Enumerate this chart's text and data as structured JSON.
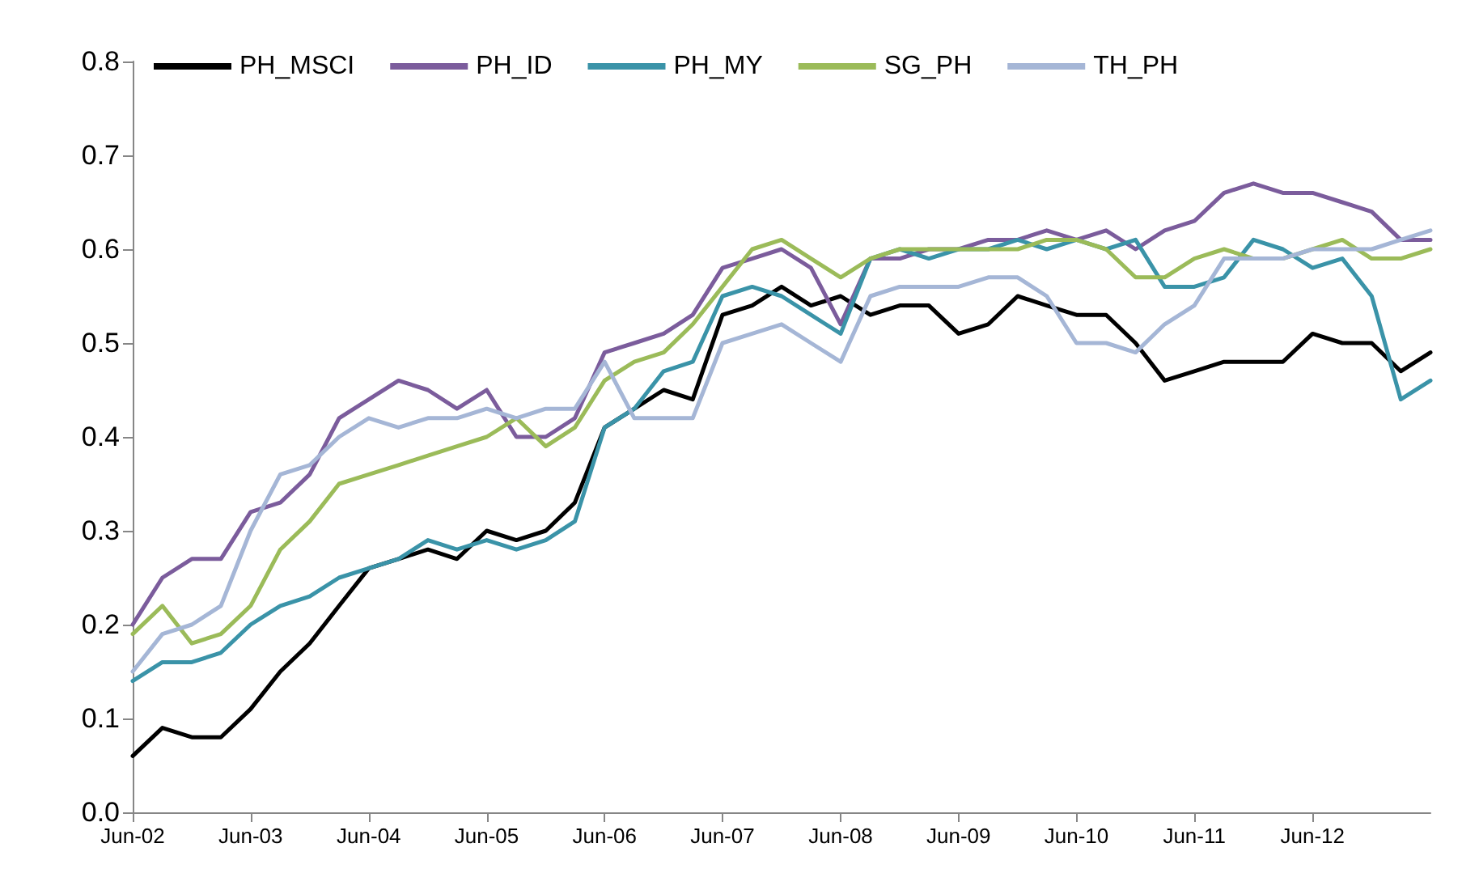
{
  "chart_data": {
    "type": "line",
    "x": [
      "2002-06",
      "2002-09",
      "2002-12",
      "2003-03",
      "2003-06",
      "2003-09",
      "2003-12",
      "2004-03",
      "2004-06",
      "2004-09",
      "2004-12",
      "2005-03",
      "2005-06",
      "2005-09",
      "2005-12",
      "2006-03",
      "2006-06",
      "2006-09",
      "2006-12",
      "2007-03",
      "2007-06",
      "2007-09",
      "2007-12",
      "2008-03",
      "2008-06",
      "2008-09",
      "2008-12",
      "2009-03",
      "2009-06",
      "2009-09",
      "2009-12",
      "2010-03",
      "2010-06",
      "2010-09",
      "2010-12",
      "2011-03",
      "2011-06",
      "2011-09",
      "2011-12",
      "2012-03",
      "2012-06",
      "2012-09",
      "2012-12",
      "2013-03",
      "2013-06"
    ],
    "series": [
      {
        "name": "PH_MSCI",
        "color": "#000000",
        "values": [
          0.06,
          0.09,
          0.08,
          0.08,
          0.11,
          0.15,
          0.18,
          0.22,
          0.26,
          0.27,
          0.28,
          0.27,
          0.3,
          0.29,
          0.3,
          0.33,
          0.41,
          0.43,
          0.45,
          0.44,
          0.53,
          0.54,
          0.56,
          0.54,
          0.55,
          0.53,
          0.54,
          0.54,
          0.51,
          0.52,
          0.55,
          0.54,
          0.53,
          0.53,
          0.5,
          0.46,
          0.47,
          0.48,
          0.48,
          0.48,
          0.51,
          0.5,
          0.5,
          0.47,
          0.49
        ]
      },
      {
        "name": "PH_ID",
        "color": "#7b5c9c",
        "values": [
          0.2,
          0.25,
          0.27,
          0.27,
          0.32,
          0.33,
          0.36,
          0.42,
          0.44,
          0.46,
          0.45,
          0.43,
          0.45,
          0.4,
          0.4,
          0.42,
          0.49,
          0.5,
          0.51,
          0.53,
          0.58,
          0.59,
          0.6,
          0.58,
          0.52,
          0.59,
          0.59,
          0.6,
          0.6,
          0.61,
          0.61,
          0.62,
          0.61,
          0.62,
          0.6,
          0.62,
          0.63,
          0.66,
          0.67,
          0.66,
          0.66,
          0.65,
          0.64,
          0.61,
          0.61
        ]
      },
      {
        "name": "PH_MY",
        "color": "#3a93a8",
        "values": [
          0.14,
          0.16,
          0.16,
          0.17,
          0.2,
          0.22,
          0.23,
          0.25,
          0.26,
          0.27,
          0.29,
          0.28,
          0.29,
          0.28,
          0.29,
          0.31,
          0.41,
          0.43,
          0.47,
          0.48,
          0.55,
          0.56,
          0.55,
          0.53,
          0.51,
          0.59,
          0.6,
          0.59,
          0.6,
          0.6,
          0.61,
          0.6,
          0.61,
          0.6,
          0.61,
          0.56,
          0.56,
          0.57,
          0.61,
          0.6,
          0.58,
          0.59,
          0.55,
          0.44,
          0.46
        ]
      },
      {
        "name": "SG_PH",
        "color": "#9bbb59",
        "values": [
          0.19,
          0.22,
          0.18,
          0.19,
          0.22,
          0.28,
          0.31,
          0.35,
          0.36,
          0.37,
          0.38,
          0.39,
          0.4,
          0.42,
          0.39,
          0.41,
          0.46,
          0.48,
          0.49,
          0.52,
          0.56,
          0.6,
          0.61,
          0.59,
          0.57,
          0.59,
          0.6,
          0.6,
          0.6,
          0.6,
          0.6,
          0.61,
          0.61,
          0.6,
          0.57,
          0.57,
          0.59,
          0.6,
          0.59,
          0.59,
          0.6,
          0.61,
          0.59,
          0.59,
          0.6
        ]
      },
      {
        "name": "TH_PH",
        "color": "#a5b6d6",
        "values": [
          0.15,
          0.19,
          0.2,
          0.22,
          0.3,
          0.36,
          0.37,
          0.4,
          0.42,
          0.41,
          0.42,
          0.42,
          0.43,
          0.42,
          0.43,
          0.43,
          0.48,
          0.42,
          0.42,
          0.42,
          0.5,
          0.51,
          0.52,
          0.5,
          0.48,
          0.55,
          0.56,
          0.56,
          0.56,
          0.57,
          0.57,
          0.55,
          0.5,
          0.5,
          0.49,
          0.52,
          0.54,
          0.59,
          0.59,
          0.59,
          0.6,
          0.6,
          0.6,
          0.61,
          0.62
        ]
      }
    ],
    "xlim": [
      "2002-06",
      "2013-06"
    ],
    "xticks": [
      {
        "value": "2002-06",
        "label": "Jun-02"
      },
      {
        "value": "2003-06",
        "label": "Jun-03"
      },
      {
        "value": "2004-06",
        "label": "Jun-04"
      },
      {
        "value": "2005-06",
        "label": "Jun-05"
      },
      {
        "value": "2006-06",
        "label": "Jun-06"
      },
      {
        "value": "2007-06",
        "label": "Jun-07"
      },
      {
        "value": "2008-06",
        "label": "Jun-08"
      },
      {
        "value": "2009-06",
        "label": "Jun-09"
      },
      {
        "value": "2010-06",
        "label": "Jun-10"
      },
      {
        "value": "2011-06",
        "label": "Jun-11"
      },
      {
        "value": "2012-06",
        "label": "Jun-12"
      }
    ],
    "ylim": [
      0,
      0.8
    ],
    "yticks": [
      {
        "value": 0,
        "label": "0.0"
      },
      {
        "value": 0.1,
        "label": "0.1"
      },
      {
        "value": 0.2,
        "label": "0.2"
      },
      {
        "value": 0.3,
        "label": "0.3"
      },
      {
        "value": 0.4,
        "label": "0.4"
      },
      {
        "value": 0.5,
        "label": "0.5"
      },
      {
        "value": 0.6,
        "label": "0.6"
      },
      {
        "value": 0.7,
        "label": "0.7"
      },
      {
        "value": 0.8,
        "label": "0.8"
      }
    ],
    "grid": false,
    "legend": "top left",
    "marker": "none",
    "line_style": "solid"
  }
}
